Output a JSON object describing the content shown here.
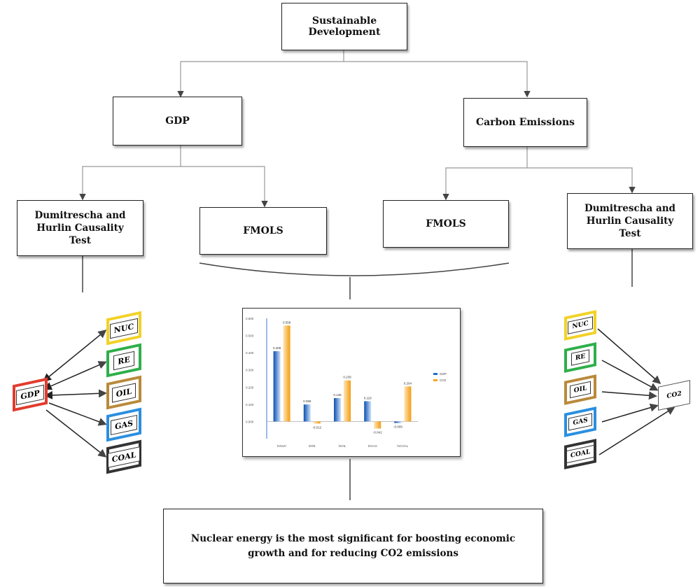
{
  "top": {
    "label": "Sustainable Development"
  },
  "branches": {
    "left": "GDP",
    "right": "Carbon Emissions"
  },
  "methods": {
    "dh_left": "Dumitrescha and Hurlin Causality Test",
    "fmols_left": "FMOLS",
    "fmols_right": "FMOLS",
    "dh_right": "Dumitrescha and Hurlin Causality Test"
  },
  "left_network": {
    "center": "GDP",
    "nodes": [
      "NUC",
      "RE",
      "OIL",
      "GAS",
      "COAL"
    ],
    "colors": {
      "NUC": "#f2d226",
      "RE": "#2eaf4a",
      "OIL": "#b98a3a",
      "GAS": "#2b8fe0",
      "COAL": "#333333",
      "GDP": "#e23b2e"
    }
  },
  "right_network": {
    "center": "CO2",
    "nodes": [
      "NUC",
      "RE",
      "OIL",
      "GAS",
      "COAL"
    ]
  },
  "conclusion": "Nuclear energy is the most significant for boosting economic growth and for reducing CO2 emissions",
  "chart_data": {
    "type": "bar",
    "categories": [
      "lnNUC",
      "lnRE",
      "lnOIL",
      "lnGAS",
      "lnCOAL"
    ],
    "series": [
      {
        "name": "GDP",
        "values": [
          0.409,
          0.099,
          0.136,
          0.118,
          -0.009
        ],
        "color": "#1f6fd1"
      },
      {
        "name": "CO2",
        "values": [
          0.558,
          -0.012,
          0.239,
          -0.041,
          0.204
        ],
        "color": "#f5a623"
      }
    ],
    "value_labels_gdp": [
      "0.409",
      "0.099",
      "0.136",
      "0.118",
      "-0.009"
    ],
    "value_labels_co2": [
      "0.558",
      "-0.012",
      "0.239",
      "-0.041",
      "0.204"
    ],
    "yticks": [
      "0.600",
      "0.500",
      "0.400",
      "0.300",
      "0.200",
      "0.100",
      "0.000"
    ],
    "ylim": [
      -0.1,
      0.6
    ],
    "legend": "right"
  }
}
